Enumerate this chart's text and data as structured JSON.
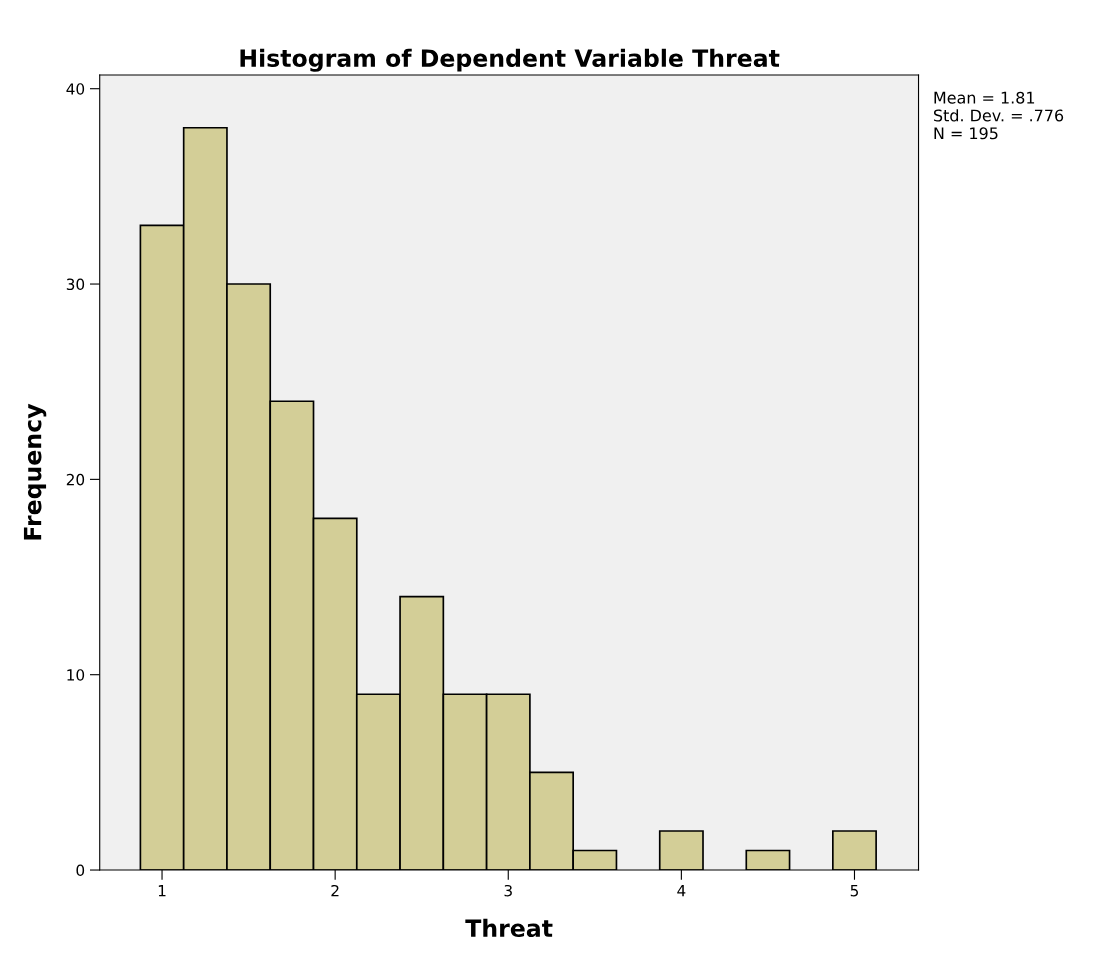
{
  "chart_data": {
    "type": "histogram",
    "title": "Histogram of Dependent Variable Threat",
    "xlabel": "Threat",
    "ylabel": "Frequency",
    "bins": [
      0.875,
      1.125,
      1.375,
      1.625,
      1.875,
      2.125,
      2.375,
      2.625,
      2.875,
      3.125,
      3.375,
      3.625,
      3.875,
      4.125,
      4.375,
      4.625,
      4.875,
      5.125
    ],
    "values": [
      33,
      38,
      30,
      24,
      18,
      9,
      14,
      9,
      9,
      5,
      1,
      0,
      2,
      0,
      1,
      0,
      2
    ],
    "color": "#d3ce97",
    "xlim": [
      0.64,
      5.37
    ],
    "xticks": [
      1,
      2,
      3,
      4,
      5
    ],
    "ylim": [
      0,
      40.7
    ],
    "yticks": [
      0,
      10,
      20,
      30,
      40
    ],
    "grid": false,
    "annotations": [
      "Mean = 1.81",
      "Std. Dev. = .776",
      "N = 195"
    ]
  }
}
